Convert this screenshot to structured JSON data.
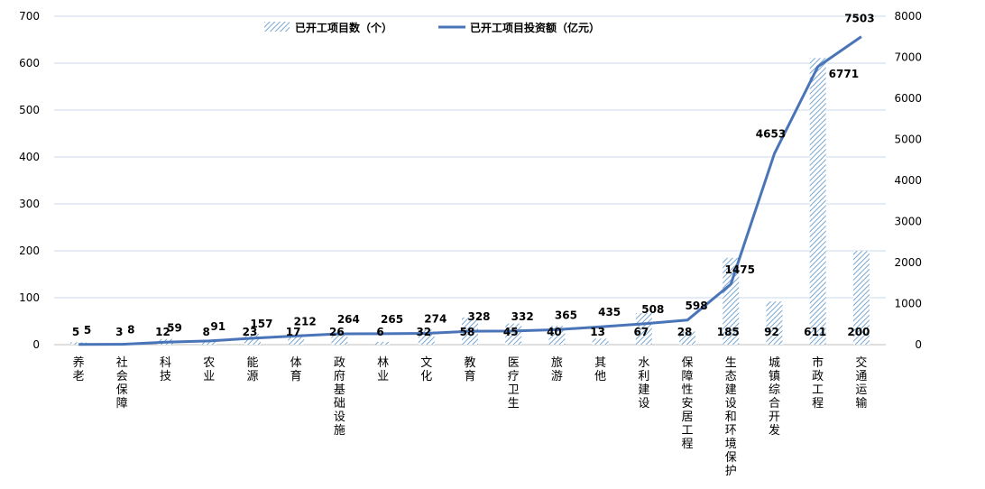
{
  "chart_data": {
    "type": "bar",
    "categories": [
      "养老",
      "社会保障",
      "科技",
      "农业",
      "能源",
      "体育",
      "政府基础设施",
      "林业",
      "文化",
      "教育",
      "医疗卫生",
      "旅游",
      "其他",
      "水利建设",
      "保障性安居工程",
      "生态建设和环境保护",
      "城镇综合开发",
      "市政工程",
      "交通运输"
    ],
    "series": [
      {
        "name": "已开工项目数（个）",
        "kind": "bar",
        "axis": "left",
        "pattern": "diagonal-hatch",
        "color": "#7aa7cf",
        "values": [
          5,
          3,
          12,
          8,
          23,
          17,
          26,
          6,
          32,
          58,
          45,
          40,
          13,
          67,
          28,
          185,
          92,
          611,
          200
        ]
      },
      {
        "name": "已开工项目投资额（亿元）",
        "kind": "line",
        "axis": "right",
        "color": "#4a74b8",
        "values": [
          5,
          8,
          59,
          91,
          157,
          212,
          264,
          265,
          274,
          328,
          332,
          365,
          435,
          508,
          598,
          1475,
          4653,
          6771,
          7503
        ]
      }
    ],
    "y_left": {
      "min": 0,
      "max": 700,
      "step": 100,
      "ticks": [
        "0",
        "100",
        "200",
        "300",
        "400",
        "500",
        "600",
        "700"
      ]
    },
    "y_right": {
      "min": 0,
      "max": 8000,
      "step": 1000,
      "ticks": [
        "0",
        "1000",
        "2000",
        "3000",
        "4000",
        "5000",
        "6000",
        "7000",
        "8000"
      ]
    },
    "title": "",
    "xlabel": "",
    "ylabel": "",
    "grid": true,
    "legend_position": "top-center"
  }
}
